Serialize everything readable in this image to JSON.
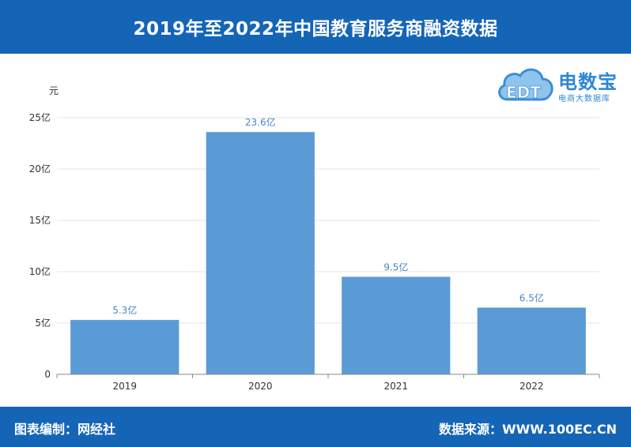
{
  "header": {
    "title": "2019年至2022年中国教育服务商融资数据"
  },
  "logo": {
    "brand": "电数宝",
    "subtitle": "电商大数据库",
    "mark_text": "EDT"
  },
  "footer": {
    "left": "图表编制：网经社",
    "right": "数据来源：WWW.100EC.CN"
  },
  "colors": {
    "header_bg": "#1565b7",
    "bar": "#5b9bd5",
    "label": "#4a86c5"
  },
  "chart_data": {
    "type": "bar",
    "title": "2019年至2022年中国教育服务商融资数据",
    "xlabel": "",
    "ylabel": "元",
    "categories": [
      "2019",
      "2020",
      "2021",
      "2022"
    ],
    "values": [
      5.3,
      23.6,
      9.5,
      6.5
    ],
    "data_labels": [
      "5.3亿",
      "23.6亿",
      "9.5亿",
      "6.5亿"
    ],
    "ylim": [
      0,
      25
    ],
    "yticks": [
      0,
      5,
      10,
      15,
      20,
      25
    ],
    "ytick_labels": [
      "0",
      "5亿",
      "10亿",
      "15亿",
      "20亿",
      "25亿"
    ],
    "grid": true
  }
}
